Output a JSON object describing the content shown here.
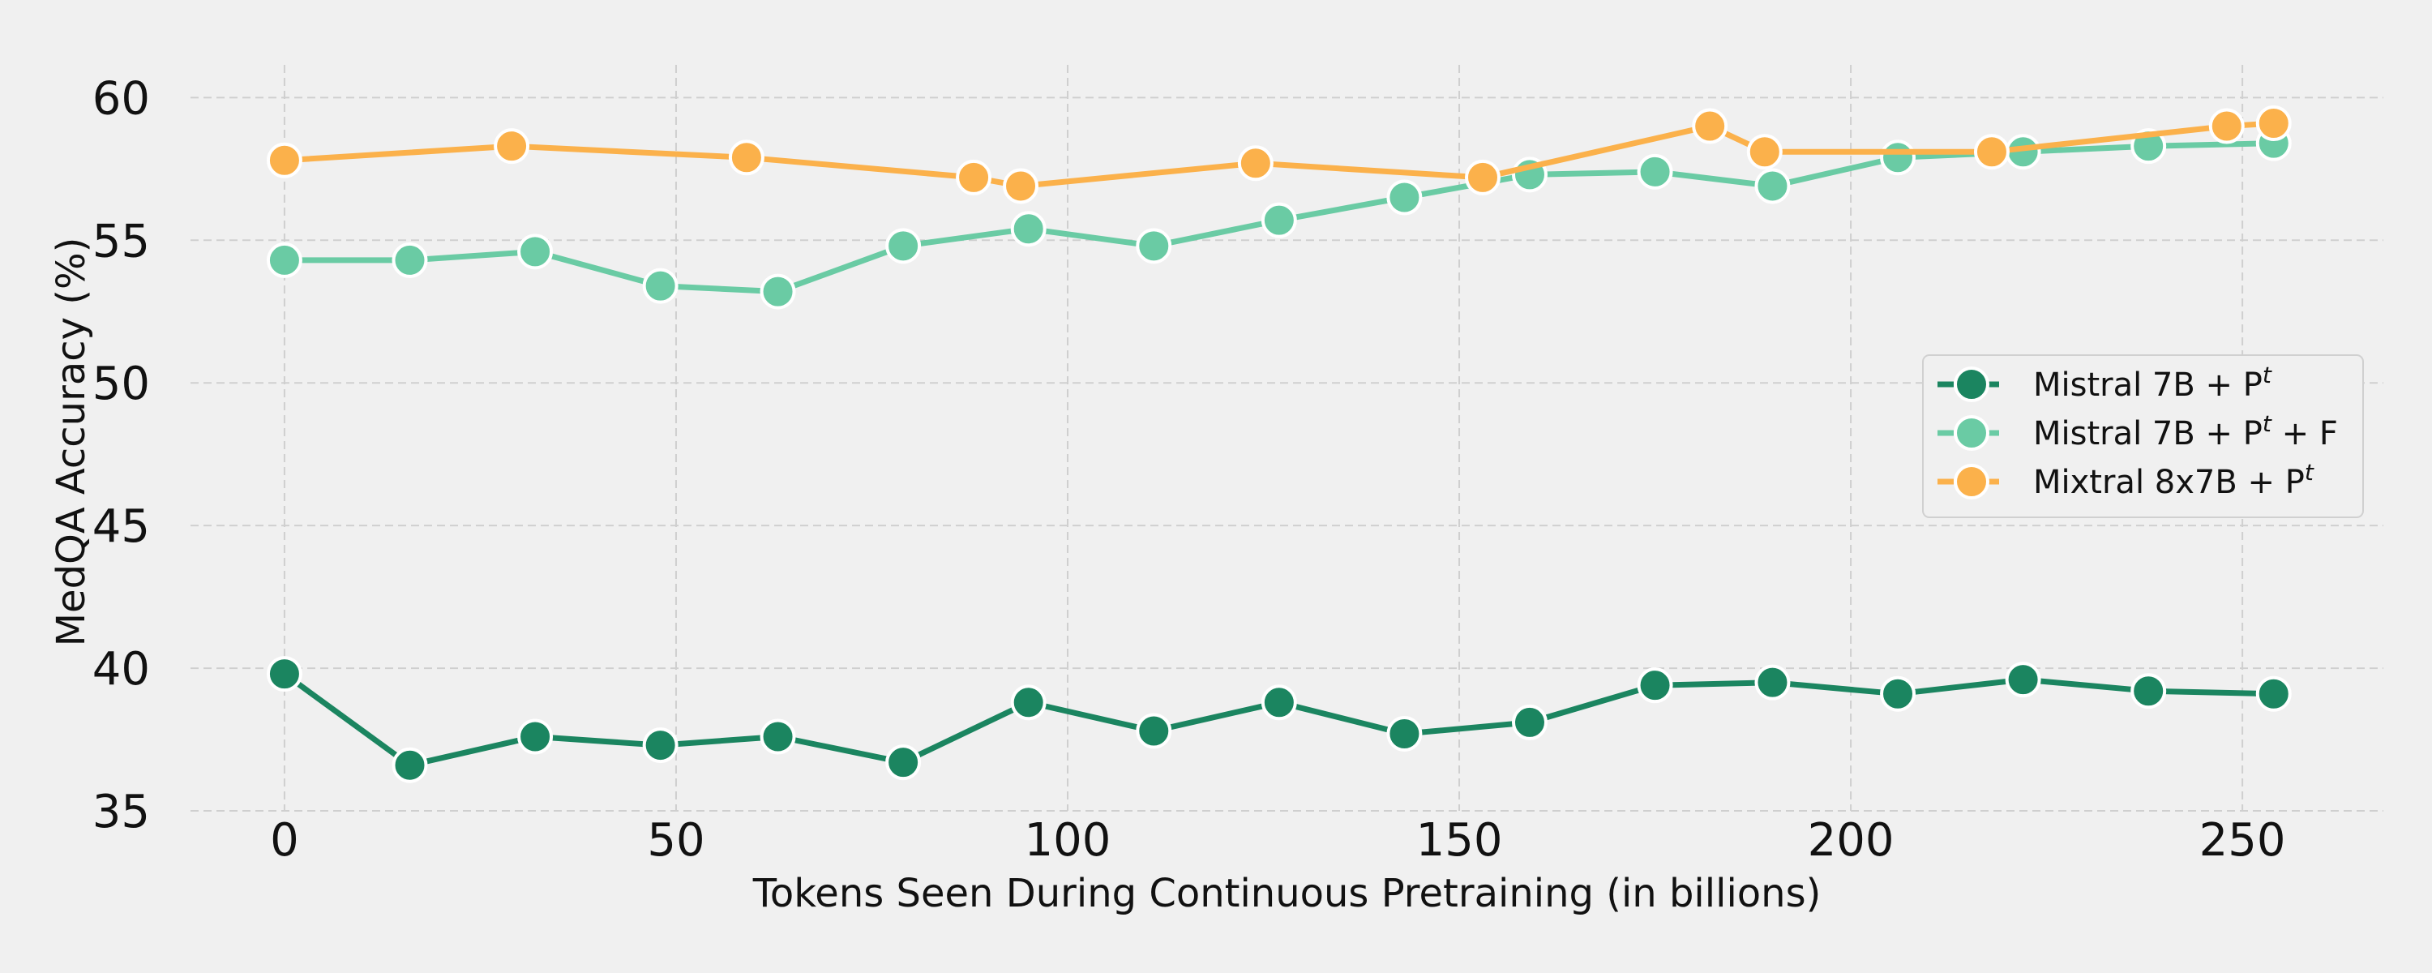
{
  "chart_data": {
    "type": "line",
    "xlabel": "Tokens Seen During Continuous Pretraining (in billions)",
    "ylabel": "MedQA Accuracy (%)",
    "xlim": [
      -12,
      268
    ],
    "ylim": [
      35,
      62
    ],
    "xticks": [
      0,
      50,
      100,
      150,
      200,
      250
    ],
    "yticks": [
      35,
      40,
      45,
      50,
      55,
      60
    ],
    "grid": true,
    "legend_position": "center-right",
    "series": [
      {
        "name": "Mistral 7B + Pt",
        "legend_base": "Mistral 7B + P",
        "legend_sup": "t",
        "legend_suffix": "",
        "color": "#1b8560",
        "x": [
          0,
          16,
          32,
          48,
          63,
          79,
          95,
          111,
          127,
          143,
          159,
          175,
          190,
          206,
          222,
          238,
          254
        ],
        "y": [
          39.8,
          36.6,
          37.6,
          37.3,
          37.6,
          36.7,
          38.8,
          37.8,
          38.8,
          37.7,
          38.1,
          39.4,
          39.5,
          39.1,
          39.6,
          39.2,
          39.1
        ]
      },
      {
        "name": "Mistral 7B + Pt + F",
        "legend_base": "Mistral 7B + P",
        "legend_sup": "t",
        "legend_suffix": " + F",
        "color": "#6acba4",
        "x": [
          0,
          16,
          32,
          48,
          63,
          79,
          95,
          111,
          127,
          143,
          159,
          175,
          190,
          206,
          222,
          238,
          254
        ],
        "y": [
          54.3,
          54.3,
          54.6,
          53.4,
          53.2,
          54.8,
          55.4,
          54.8,
          55.7,
          56.5,
          57.3,
          57.4,
          56.9,
          57.9,
          58.1,
          58.3,
          58.4
        ]
      },
      {
        "name": "Mixtral 8x7B + Pt",
        "legend_base": "Mixtral 8x7B + P",
        "legend_sup": "t",
        "legend_suffix": "",
        "color": "#fbb14b",
        "x": [
          0,
          29,
          59,
          88,
          94,
          124,
          153,
          182,
          189,
          218,
          248,
          254
        ],
        "y": [
          57.8,
          58.3,
          57.9,
          57.2,
          56.9,
          57.7,
          57.2,
          59.0,
          58.1,
          58.1,
          59.0,
          59.1
        ]
      }
    ]
  }
}
